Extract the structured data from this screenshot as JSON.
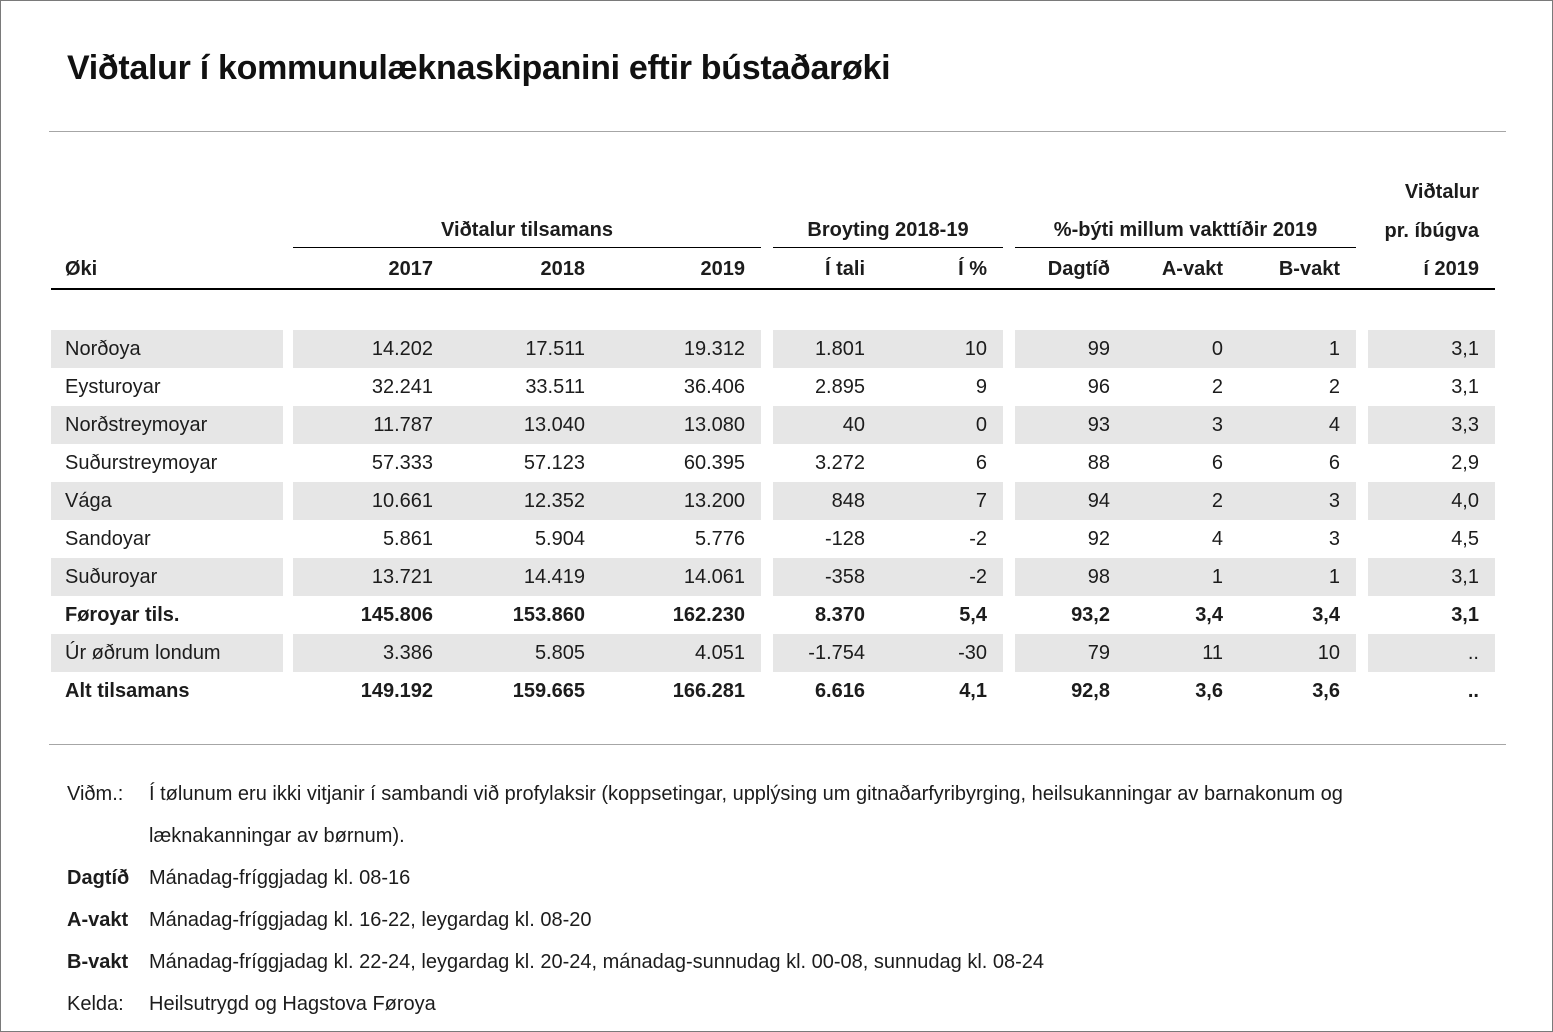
{
  "page": {
    "title": "Viðtalur í kommunulæknaskipanini eftir bústaðarøki"
  },
  "colors": {
    "row_shade": "#e6e6e6",
    "rule_light": "#a6a6a6",
    "rule_dark": "#000000"
  },
  "table": {
    "groups": {
      "tilsamans": "Viðtalur tilsamans",
      "broyting": "Broyting 2018-19",
      "vakttidir": "%-býti millum vakttíðir 2019"
    },
    "pr_ibugva": {
      "line1": "Viðtalur",
      "line2": "pr. íbúgva",
      "line3": "í 2019"
    },
    "columns": {
      "oki": "Øki",
      "y2017": "2017",
      "y2018": "2018",
      "y2019": "2019",
      "itali": "Í tali",
      "ipct": "Í %",
      "dagtid": "Dagtíð",
      "avakt": "A-vakt",
      "bvakt": "B-vakt"
    },
    "rows": [
      {
        "label": "Norðoya",
        "v": [
          "14.202",
          "17.511",
          "19.312",
          "1.801",
          "10",
          "99",
          "0",
          "1",
          "3,1"
        ]
      },
      {
        "label": "Eysturoyar",
        "v": [
          "32.241",
          "33.511",
          "36.406",
          "2.895",
          "9",
          "96",
          "2",
          "2",
          "3,1"
        ]
      },
      {
        "label": "Norðstreymoyar",
        "v": [
          "11.787",
          "13.040",
          "13.080",
          "40",
          "0",
          "93",
          "3",
          "4",
          "3,3"
        ]
      },
      {
        "label": "Suðurstreymoyar",
        "v": [
          "57.333",
          "57.123",
          "60.395",
          "3.272",
          "6",
          "88",
          "6",
          "6",
          "2,9"
        ]
      },
      {
        "label": "Vága",
        "v": [
          "10.661",
          "12.352",
          "13.200",
          "848",
          "7",
          "94",
          "2",
          "3",
          "4,0"
        ]
      },
      {
        "label": "Sandoyar",
        "v": [
          "5.861",
          "5.904",
          "5.776",
          "-128",
          "-2",
          "92",
          "4",
          "3",
          "4,5"
        ]
      },
      {
        "label": "Suðuroyar",
        "v": [
          "13.721",
          "14.419",
          "14.061",
          "-358",
          "-2",
          "98",
          "1",
          "1",
          "3,1"
        ]
      },
      {
        "label": "Føroyar tils.",
        "v": [
          "145.806",
          "153.860",
          "162.230",
          "8.370",
          "5,4",
          "93,2",
          "3,4",
          "3,4",
          "3,1"
        ]
      },
      {
        "label": "Úr øðrum londum",
        "v": [
          "3.386",
          "5.805",
          "4.051",
          "-1.754",
          "-30",
          "79",
          "11",
          "10",
          ".."
        ]
      },
      {
        "label": "Alt tilsamans",
        "v": [
          "149.192",
          "159.665",
          "166.281",
          "6.616",
          "4,1",
          "92,8",
          "3,6",
          "3,6",
          ".."
        ]
      }
    ]
  },
  "notes": {
    "vidm_label": "Viðm.:",
    "vidm_text": "Í tølunum eru ikki vitjanir í sambandi við profylaksir (koppsetingar, upplýsing um gitnaðarfyribyrging, heilsukanningar av barnakonum og læknakanningar av børnum).",
    "dagtid_label": "Dagtíð",
    "dagtid_text": "Mánadag-fríggjadag kl. 08-16",
    "avakt_label": "A-vakt",
    "avakt_text": "Mánadag-fríggjadag kl. 16-22, leygardag kl. 08-20",
    "bvakt_label": "B-vakt",
    "bvakt_text": "Mánadag-fríggjadag kl. 22-24, leygardag kl. 20-24, mánadag-sunnudag kl. 00-08, sunnudag kl. 08-24",
    "kelda_label": "Kelda:",
    "kelda_text": "Heilsutrygd og Hagstova Føroya"
  }
}
